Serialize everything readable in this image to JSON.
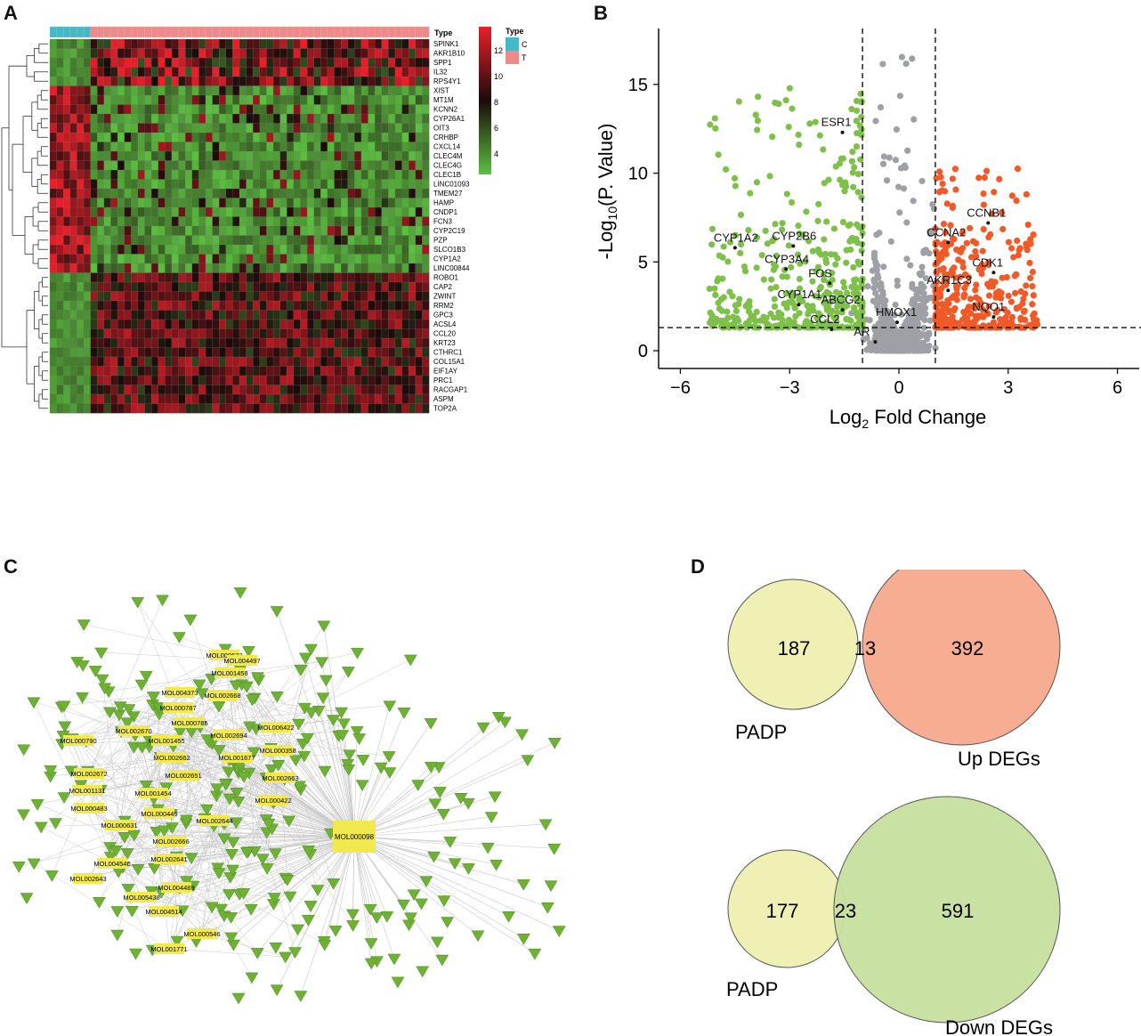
{
  "panels": {
    "a": "A",
    "b": "B",
    "c": "C",
    "d": "D"
  },
  "colors": {
    "heat_high": "#e8202a",
    "heat_mid": "#1a0b0b",
    "heat_low": "#5cc040",
    "type_c": "#45b8c8",
    "type_t": "#f08a8a",
    "volcano_down": "#7ec04a",
    "volcano_up": "#f05a28",
    "volcano_ns": "#9ea0a6",
    "network_node": "#6fb135",
    "network_mol": "#f1e94e",
    "venn_padp": "#eef0b4",
    "venn_up": "#f5a98c",
    "venn_down": "#c7df9f"
  },
  "heatmap": {
    "genes": [
      "SPINK1",
      "AKR1B10",
      "SPP1",
      "IL32",
      "RPS4Y1",
      "XIST",
      "MT1M",
      "KCNN2",
      "CYP26A1",
      "OIT3",
      "CRHBP",
      "CXCL14",
      "CLEC4M",
      "CLEC4G",
      "CLEC1B",
      "LINC01093",
      "TMEM27",
      "HAMP",
      "CNDP1",
      "FCN3",
      "CYP2C19",
      "PZP",
      "SLCO1B3",
      "CYP1A2",
      "LINC00844",
      "ROBO1",
      "CAP2",
      "ZWINT",
      "RRM2",
      "GPC3",
      "ACSL4",
      "CCL20",
      "KRT23",
      "CTHRC1",
      "COL15A1",
      "EIF1AY",
      "PRC1",
      "RACGAP1",
      "ASPM",
      "TOP2A"
    ],
    "type_header": "Type",
    "legend_scale_ticks": [
      "12",
      "10",
      "8",
      "6",
      "4"
    ],
    "legend_title": "Type",
    "legend_entries": [
      {
        "label": "C",
        "color": "#45b8c8"
      },
      {
        "label": "T",
        "color": "#f08a8a"
      }
    ]
  },
  "chart_data": {
    "type": "scatter",
    "title": "",
    "xlabel_main": "Log",
    "xlabel_sub": "2",
    "xlabel_tail": " Fold Change",
    "ylabel_main": "-Log",
    "ylabel_sub": "10",
    "ylabel_tail": "(P. Value)",
    "xlim": [
      -6.5,
      6.5
    ],
    "ylim": [
      -0.8,
      18
    ],
    "xticks": [
      -6,
      -3,
      0,
      3,
      6
    ],
    "yticks": [
      0,
      5,
      10,
      15
    ],
    "thresholds": {
      "logfc": [
        -1,
        1
      ],
      "p": 1.3
    },
    "labels": [
      {
        "text": "ESR1",
        "x": -1.55,
        "y": 12.6
      },
      {
        "text": "CYP1A2",
        "x": -4.5,
        "y": 6.1
      },
      {
        "text": "CYP2B6",
        "x": -2.9,
        "y": 6.2
      },
      {
        "text": "CYP3A4",
        "x": -3.1,
        "y": 4.9
      },
      {
        "text": "FOS",
        "x": -1.9,
        "y": 4.1
      },
      {
        "text": "CYP1A1",
        "x": -2.75,
        "y": 2.9
      },
      {
        "text": "ABCG2",
        "x": -1.55,
        "y": 2.6
      },
      {
        "text": "CCL2",
        "x": -1.85,
        "y": 1.5
      },
      {
        "text": "HMOX1",
        "x": -0.05,
        "y": 1.9
      },
      {
        "text": "AR",
        "x": -0.65,
        "y": 0.8
      },
      {
        "text": "CCNB1",
        "x": 2.45,
        "y": 7.5
      },
      {
        "text": "CCNA2",
        "x": 1.35,
        "y": 6.4
      },
      {
        "text": "CDK1",
        "x": 2.6,
        "y": 4.7
      },
      {
        "text": "AKR1C3",
        "x": 1.35,
        "y": 3.7
      },
      {
        "text": "NQO1",
        "x": 2.6,
        "y": 2.2
      }
    ]
  },
  "network": {
    "hub": "MOL000098",
    "molecules": [
      "MOL000622",
      "MOL004497",
      "MOL001458",
      "MOL004373",
      "MOL002668",
      "MOL000787",
      "MOL000785",
      "MOL006422",
      "MOL000790",
      "MOL002670",
      "MOL001455",
      "MOL002694",
      "MOL002662",
      "MOL000358",
      "MOL001677",
      "MOL002672",
      "MOL002651",
      "MOL002663",
      "MOL001131",
      "MOL001454",
      "MOL000422",
      "MOL000483",
      "MOL000449",
      "MOL002644",
      "MOL000631",
      "MOL002666",
      "MOL004540",
      "MOL002641",
      "MOL002643",
      "MOL004489",
      "MOL005438",
      "MOL004514",
      "MOL000546",
      "MOL001771"
    ]
  },
  "venn": [
    {
      "left_label": "PADP",
      "right_label": "Up DEGs",
      "left_only": "187",
      "overlap": "13",
      "right_only": "392"
    },
    {
      "left_label": "PADP",
      "right_label": "Down DEGs",
      "left_only": "177",
      "overlap": "23",
      "right_only": "591"
    }
  ]
}
